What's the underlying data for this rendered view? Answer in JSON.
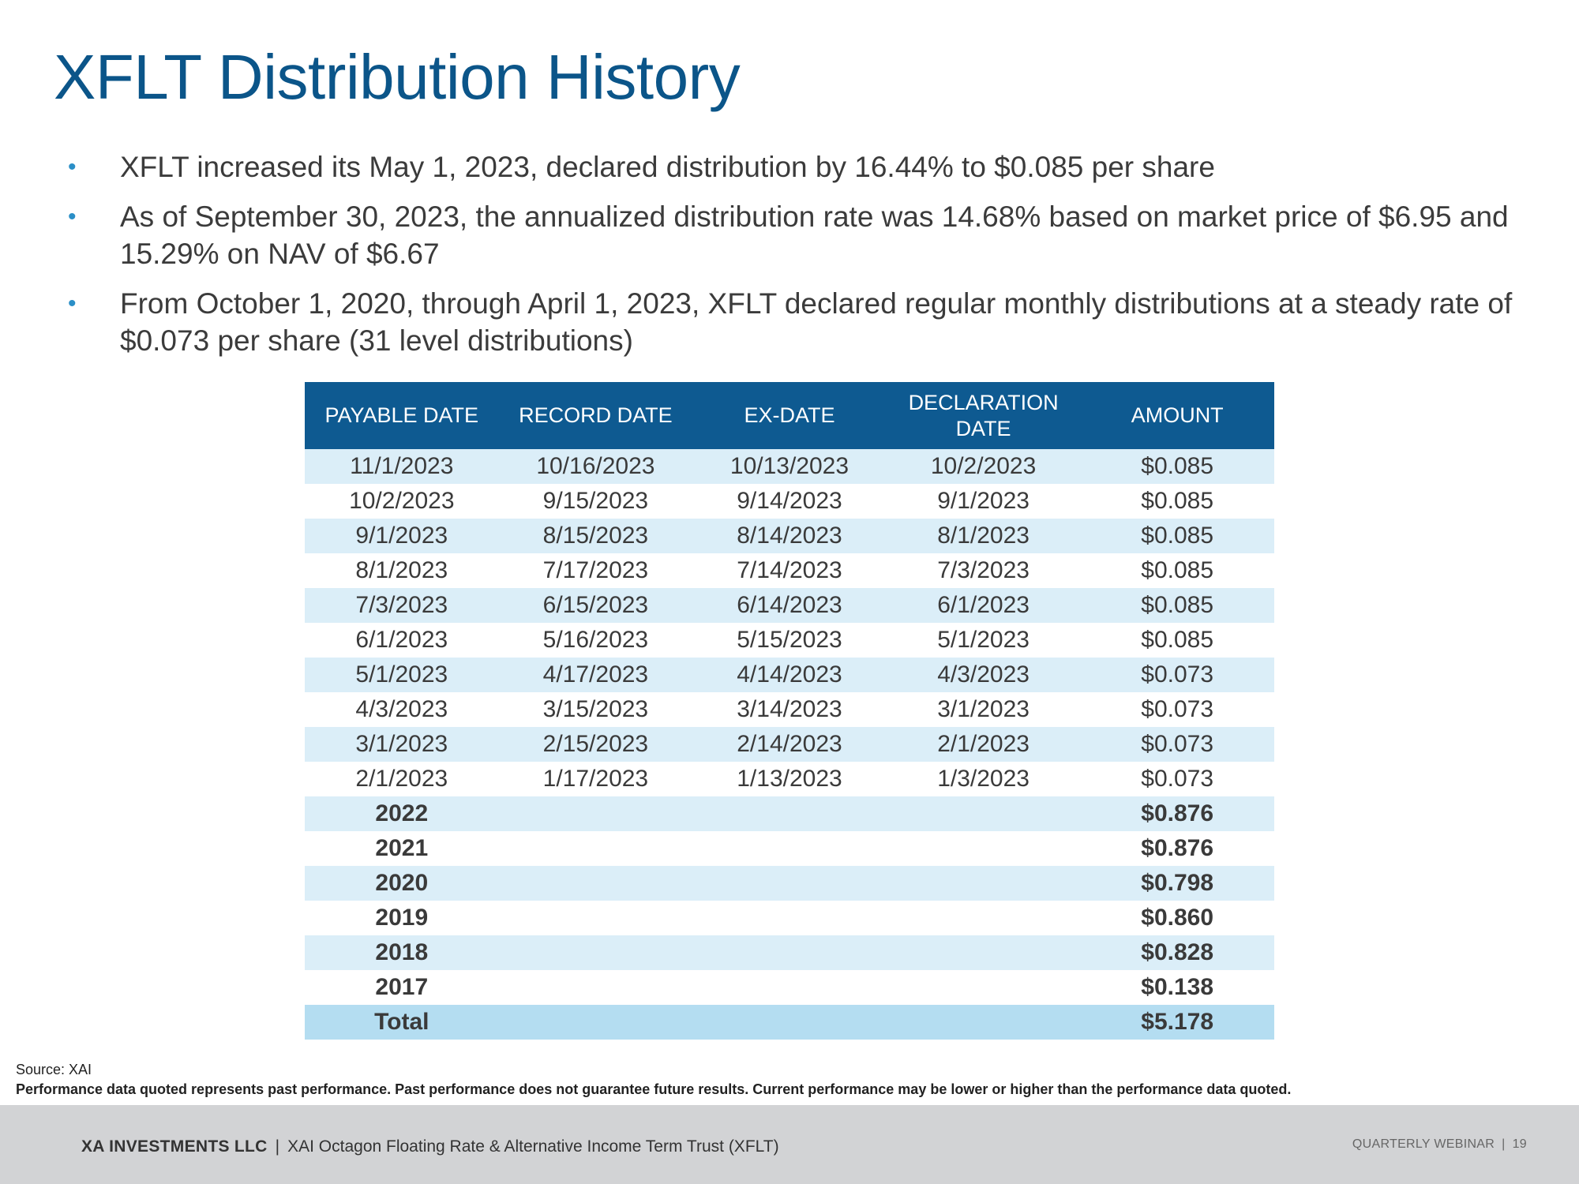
{
  "title": "XFLT Distribution History",
  "bullets": [
    "XFLT increased its May 1, 2023, declared distribution by 16.44% to $0.085 per share",
    "As of September 30, 2023, the annualized distribution rate was 14.68% based on market price of $6.95 and 15.29% on NAV of $6.67",
    "From October 1, 2020, through April 1, 2023, XFLT declared regular monthly distributions at a steady rate of $0.073 per share (31 level distributions)"
  ],
  "bullet_symbol": "•",
  "table": {
    "headers": [
      "PAYABLE DATE",
      "RECORD DATE",
      "EX-DATE",
      "DECLARATION DATE",
      "AMOUNT"
    ],
    "rows": [
      [
        "11/1/2023",
        "10/16/2023",
        "10/13/2023",
        "10/2/2023",
        "$0.085"
      ],
      [
        "10/2/2023",
        "9/15/2023",
        "9/14/2023",
        "9/1/2023",
        "$0.085"
      ],
      [
        "9/1/2023",
        "8/15/2023",
        "8/14/2023",
        "8/1/2023",
        "$0.085"
      ],
      [
        "8/1/2023",
        "7/17/2023",
        "7/14/2023",
        "7/3/2023",
        "$0.085"
      ],
      [
        "7/3/2023",
        "6/15/2023",
        "6/14/2023",
        "6/1/2023",
        "$0.085"
      ],
      [
        "6/1/2023",
        "5/16/2023",
        "5/15/2023",
        "5/1/2023",
        "$0.085"
      ],
      [
        "5/1/2023",
        "4/17/2023",
        "4/14/2023",
        "4/3/2023",
        "$0.073"
      ],
      [
        "4/3/2023",
        "3/15/2023",
        "3/14/2023",
        "3/1/2023",
        "$0.073"
      ],
      [
        "3/1/2023",
        "2/15/2023",
        "2/14/2023",
        "2/1/2023",
        "$0.073"
      ],
      [
        "2/1/2023",
        "1/17/2023",
        "1/13/2023",
        "1/3/2023",
        "$0.073"
      ]
    ],
    "annual_rows": [
      [
        "2022",
        "$0.876"
      ],
      [
        "2021",
        "$0.876"
      ],
      [
        "2020",
        "$0.798"
      ],
      [
        "2019",
        "$0.860"
      ],
      [
        "2018",
        "$0.828"
      ],
      [
        "2017",
        "$0.138"
      ]
    ],
    "total": [
      "Total",
      "$5.178"
    ]
  },
  "source": "Source: XAI",
  "disclaimer": "Performance data quoted represents past performance. Past performance does not guarantee future results. Current performance may be lower or higher than the performance data quoted.",
  "footer": {
    "company": "XA INVESTMENTS LLC",
    "separator": "|",
    "fund": "XAI Octagon Floating Rate & Alternative Income Term Trust (XFLT)",
    "event": "QUARTERLY WEBINAR",
    "page": "19"
  }
}
